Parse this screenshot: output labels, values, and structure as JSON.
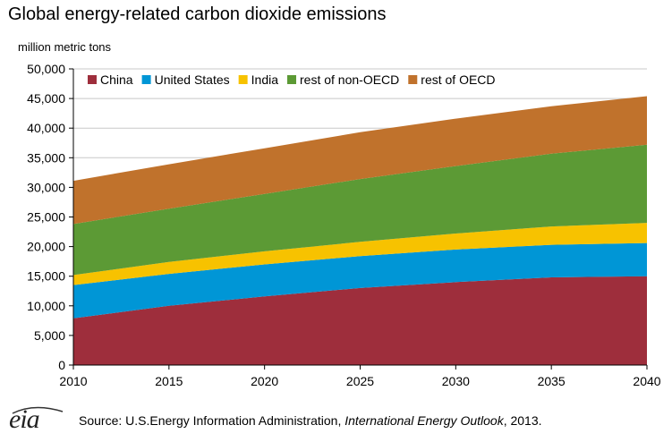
{
  "chart_data": {
    "type": "area",
    "stacked": true,
    "title": "Global energy-related carbon dioxide emissions",
    "ylabel": "million metric tons",
    "xlabel": "",
    "x": [
      2010,
      2015,
      2020,
      2025,
      2030,
      2035,
      2040
    ],
    "ylim": [
      0,
      50000
    ],
    "yticks": [
      "0",
      "5,000",
      "10,000",
      "15,000",
      "20,000",
      "25,000",
      "30,000",
      "35,000",
      "40,000",
      "45,000",
      "50,000"
    ],
    "ytick_values": [
      0,
      5000,
      10000,
      15000,
      20000,
      25000,
      30000,
      35000,
      40000,
      45000,
      50000
    ],
    "xticks": [
      "2010",
      "2015",
      "2020",
      "2025",
      "2030",
      "2035",
      "2040"
    ],
    "grid": "horizontal",
    "legend_position": "top-left",
    "series": [
      {
        "name": "China",
        "color": "#9e2e3c",
        "values": [
          7900,
          10000,
          11600,
          13000,
          14000,
          14800,
          15000
        ]
      },
      {
        "name": "United States",
        "color": "#0096d6",
        "values": [
          5600,
          5400,
          5400,
          5400,
          5500,
          5500,
          5600
        ]
      },
      {
        "name": "India",
        "color": "#f7c200",
        "values": [
          1700,
          2000,
          2200,
          2400,
          2700,
          3100,
          3400
        ]
      },
      {
        "name": "rest of non-OECD",
        "color": "#5c9a35",
        "values": [
          8600,
          9000,
          9700,
          10600,
          11400,
          12300,
          13200
        ]
      },
      {
        "name": "rest of OECD",
        "color": "#c0722c",
        "values": [
          7300,
          7500,
          7700,
          7900,
          8000,
          8000,
          8200
        ]
      }
    ]
  },
  "footer": {
    "logo_text": "eia",
    "source_prefix": "Source:  U.S.Energy Information  Administration, ",
    "source_italic": "International Energy Outlook",
    "source_suffix": ", 2013."
  }
}
